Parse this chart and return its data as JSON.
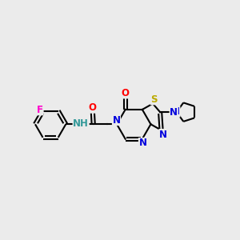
{
  "bg_color": "#ebebeb",
  "atom_colors": {
    "C": "#000000",
    "N": "#0000dd",
    "O": "#ff0000",
    "S": "#bbaa00",
    "F": "#ff00cc",
    "H": "#339999"
  },
  "bond_color": "#000000",
  "bond_width": 1.5,
  "fig_width": 3.0,
  "fig_height": 3.0,
  "xlim": [
    0,
    10
  ],
  "ylim": [
    2,
    8
  ]
}
